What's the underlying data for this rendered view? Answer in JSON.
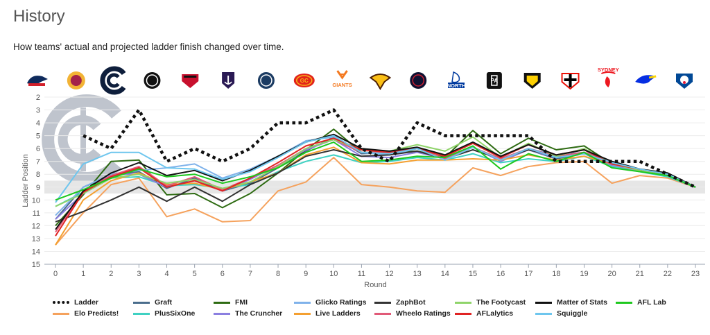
{
  "header": {
    "title": "History",
    "subtitle": "How teams' actual and projected ladder finish changed over time."
  },
  "teams": [
    {
      "label": "Adelaide",
      "color": "#0e2a5c",
      "accent": "#d21f2b",
      "shape": "crow"
    },
    {
      "label": "Brisbane",
      "color": "#a4224a",
      "accent": "#f2b335",
      "shape": "lion"
    },
    {
      "label": "Carlton",
      "color": "#0e1e3b",
      "accent": "#ffffff",
      "shape": "cfc",
      "selected": true
    },
    {
      "label": "Collingwood",
      "color": "#111111",
      "accent": "#ffffff",
      "shape": "round"
    },
    {
      "label": "Essendon",
      "color": "#c8102e",
      "accent": "#111111",
      "shape": "shield"
    },
    {
      "label": "Fremantle",
      "color": "#2a1a54",
      "accent": "#ffffff",
      "shape": "anchor"
    },
    {
      "label": "Geelong",
      "color": "#1c3c63",
      "accent": "#ffffff",
      "shape": "round"
    },
    {
      "label": "Gold Coast",
      "color": "#e2231a",
      "accent": "#f9b419",
      "shape": "oval",
      "text": "GC"
    },
    {
      "label": "GWS",
      "color": "#f47920",
      "accent": "#f47920",
      "shape": "giants",
      "text": "GIANTS"
    },
    {
      "label": "Hawthorn",
      "color": "#4d2004",
      "accent": "#fbbf15",
      "shape": "hawk"
    },
    {
      "label": "Melbourne",
      "color": "#0f1131",
      "accent": "#cc2031",
      "shape": "round"
    },
    {
      "label": "North Melbourne",
      "color": "#013b9f",
      "accent": "#ffffff",
      "shape": "kanga",
      "text": "NORTH"
    },
    {
      "label": "Port Adelaide",
      "color": "#111111",
      "accent": "#ffffff",
      "shape": "square",
      "text": "PA"
    },
    {
      "label": "Richmond",
      "color": "#111111",
      "accent": "#fed102",
      "shape": "tiger"
    },
    {
      "label": "St Kilda",
      "color": "#ed0f05",
      "accent": "#000000",
      "shape": "cross"
    },
    {
      "label": "Sydney",
      "color": "#ed171f",
      "accent": "#ffffff",
      "shape": "swan",
      "text": "SYDNEY"
    },
    {
      "label": "West Coast",
      "color": "#062ee2",
      "accent": "#ffd700",
      "shape": "eagle"
    },
    {
      "label": "Western Bulldogs",
      "color": "#014896",
      "accent": "#e31937",
      "shape": "dog"
    }
  ],
  "chart_data": {
    "type": "line",
    "title": "",
    "xlabel": "Round",
    "ylabel": "Ladder Position",
    "xlim": [
      0,
      23
    ],
    "ylim": [
      2,
      15
    ],
    "y_inverted": true,
    "grid": "horizontal",
    "highlight_band": {
      "from": 8.5,
      "to": 9.5,
      "color": "#e6e6e6"
    },
    "x_ticks": [
      0,
      1,
      2,
      3,
      4,
      5,
      6,
      7,
      8,
      9,
      10,
      11,
      12,
      13,
      14,
      15,
      16,
      17,
      18,
      19,
      20,
      21,
      22,
      23
    ],
    "y_ticks": [
      2,
      3,
      4,
      5,
      6,
      7,
      8,
      9,
      10,
      11,
      12,
      13,
      14,
      15
    ],
    "series": [
      {
        "name": "Ladder",
        "color": "#111111",
        "dashed": true,
        "values": [
          null,
          5,
          6,
          3,
          7,
          6,
          7,
          6,
          4,
          4,
          3,
          6,
          7,
          4,
          5,
          5,
          5,
          5,
          7,
          7,
          7,
          7,
          8,
          9
        ]
      },
      {
        "name": "Elo Predicts!",
        "color": "#f5a25d",
        "values": [
          13.5,
          11,
          8.8,
          8.3,
          11.3,
          10.7,
          11.7,
          11.6,
          9.3,
          8.6,
          6.7,
          8.8,
          9,
          9.3,
          9.4,
          7.5,
          8.1,
          7.4,
          7.1,
          7,
          8.7,
          8.1,
          8.3,
          9
        ]
      },
      {
        "name": "Graft",
        "color": "#4a6d8c",
        "values": [
          11.5,
          9,
          8.1,
          7.8,
          9.1,
          8.3,
          9.3,
          8.7,
          7.5,
          6.2,
          5.1,
          6.4,
          6.3,
          6,
          6.8,
          5.9,
          6.8,
          6.1,
          6.8,
          6.4,
          7.3,
          7.6,
          8,
          9
        ]
      },
      {
        "name": "PlusSixOne",
        "color": "#3fd1c2",
        "values": [
          10.5,
          9.4,
          8.3,
          8.2,
          8.9,
          8.8,
          9.1,
          8.8,
          7.8,
          7,
          6.5,
          7.1,
          7,
          6.7,
          6.9,
          6.4,
          7.1,
          6.8,
          7,
          6.6,
          7.4,
          7.8,
          8.2,
          9
        ]
      },
      {
        "name": "FMI",
        "color": "#2e6b12",
        "values": [
          12,
          9.6,
          7,
          6.9,
          9.6,
          9.5,
          10.6,
          9.5,
          7.9,
          6.1,
          4.5,
          6.3,
          6.3,
          6.2,
          6.7,
          4.6,
          6.4,
          5.2,
          6.1,
          5.8,
          7.2,
          7.6,
          8,
          9
        ]
      },
      {
        "name": "The Cruncher",
        "color": "#8b7fe0",
        "values": [
          11.5,
          9.5,
          8,
          8,
          9,
          8.5,
          9.3,
          8.4,
          7.3,
          6.1,
          5.3,
          6.6,
          6.7,
          6.3,
          6.8,
          5.9,
          7,
          6.1,
          6.7,
          6.3,
          7.3,
          7.7,
          8.1,
          9
        ]
      },
      {
        "name": "Glicko Ratings",
        "color": "#7fb2ea",
        "values": [
          11.2,
          9,
          8,
          7.7,
          7.5,
          7.2,
          8.3,
          7.6,
          6.6,
          5.4,
          5.1,
          6.3,
          6.5,
          6,
          6.8,
          5.9,
          6.8,
          6,
          6.5,
          6.3,
          7,
          7.6,
          8,
          9
        ]
      },
      {
        "name": "Live Ladders",
        "color": "#f4a031",
        "values": [
          13.5,
          10,
          8.5,
          7.9,
          8.8,
          8.7,
          9.2,
          8.6,
          7.9,
          6.5,
          5.9,
          7.1,
          7.2,
          6.9,
          6.9,
          6.8,
          6.9,
          6.5,
          6.9,
          6.6,
          7.2,
          7.7,
          8.1,
          9
        ]
      },
      {
        "name": "ZaphBot",
        "color": "#333333",
        "values": [
          11.7,
          10.9,
          10,
          9,
          10.1,
          9,
          10.1,
          8.8,
          7.9,
          6.6,
          6.1,
          6.6,
          6.5,
          6.2,
          6.8,
          6.1,
          6.8,
          6.1,
          6.6,
          6.3,
          7.2,
          7.6,
          8,
          9
        ]
      },
      {
        "name": "Wheelo Ratings",
        "color": "#e15a78",
        "values": [
          12.5,
          9.3,
          8.1,
          7.4,
          8.9,
          8.2,
          9.2,
          8.3,
          7.3,
          6,
          5.3,
          6.3,
          6.3,
          6,
          6.8,
          5.9,
          6.8,
          6,
          6.6,
          6.3,
          7.2,
          7.6,
          8,
          9
        ]
      },
      {
        "name": "The Footycast",
        "color": "#8fd46a",
        "values": [
          10.5,
          9.5,
          8.3,
          8,
          8.7,
          8.4,
          9.1,
          8.6,
          7.4,
          6,
          5.3,
          6.1,
          6.2,
          5.7,
          6.2,
          5.1,
          6.7,
          5.6,
          6.6,
          6,
          7.2,
          7.7,
          8.1,
          9
        ]
      },
      {
        "name": "AFLalytics",
        "color": "#e02424",
        "values": [
          12.8,
          9.4,
          8.2,
          7.5,
          9,
          8.5,
          9.3,
          8.3,
          7.1,
          5.8,
          5.2,
          6.1,
          6.3,
          6,
          6.6,
          5.6,
          6.7,
          5.7,
          6.5,
          6.1,
          7.2,
          7.6,
          8,
          9
        ]
      },
      {
        "name": "Matter of Stats",
        "color": "#111111",
        "values": [
          12.3,
          9.3,
          7.9,
          7.1,
          8.1,
          7.7,
          8.5,
          7.7,
          6.6,
          5.5,
          4.9,
          6,
          6.2,
          5.9,
          6.5,
          5.5,
          6.6,
          5.7,
          6.5,
          6.1,
          7,
          7.6,
          7.9,
          9
        ]
      },
      {
        "name": "Squiggle",
        "color": "#6ec6ee",
        "values": [
          10.2,
          7.2,
          6.3,
          6.3,
          7.5,
          7.6,
          8.4,
          7.8,
          6.7,
          5.5,
          5,
          6.3,
          6.4,
          6,
          6.9,
          5.9,
          6.9,
          6,
          6.7,
          6.4,
          7.1,
          7.6,
          8,
          9
        ]
      },
      {
        "name": "AFL Lab",
        "color": "#1ec81e",
        "values": [
          10,
          9.2,
          8.3,
          7.6,
          8.2,
          8,
          8.7,
          8.2,
          7.5,
          6.3,
          5.5,
          7,
          6.9,
          6.6,
          6.7,
          5.8,
          7.6,
          6.4,
          7,
          6.3,
          7.5,
          7.8,
          8.1,
          9
        ]
      }
    ]
  },
  "legend_order": [
    "Ladder",
    "Graft",
    "FMI",
    "Glicko Ratings",
    "ZaphBot",
    "The Footycast",
    "Matter of Stats",
    "AFL Lab",
    "Elo Predicts!",
    "PlusSixOne",
    "The Cruncher",
    "Live Ladders",
    "Wheelo Ratings",
    "AFLalytics",
    "Squiggle"
  ]
}
